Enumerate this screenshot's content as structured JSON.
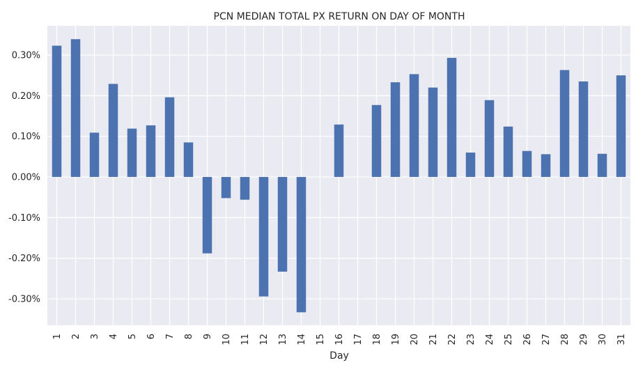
{
  "chart_data": {
    "type": "bar",
    "title": "PCN MEDIAN TOTAL PX RETURN ON DAY OF MONTH",
    "xlabel": "Day",
    "ylabel": "",
    "categories": [
      "1",
      "2",
      "3",
      "4",
      "5",
      "6",
      "7",
      "8",
      "9",
      "10",
      "11",
      "12",
      "13",
      "14",
      "15",
      "16",
      "17",
      "18",
      "19",
      "20",
      "21",
      "22",
      "23",
      "24",
      "25",
      "26",
      "27",
      "28",
      "29",
      "30",
      "31"
    ],
    "values": [
      0.323,
      0.339,
      0.109,
      0.229,
      0.119,
      0.127,
      0.196,
      0.085,
      -0.188,
      -0.052,
      -0.056,
      -0.294,
      -0.233,
      -0.333,
      0.0,
      0.129,
      0.0,
      0.177,
      0.233,
      0.253,
      0.22,
      0.293,
      0.06,
      0.189,
      0.124,
      0.064,
      0.056,
      0.263,
      0.235,
      0.057,
      0.25
    ],
    "value_unit": "%",
    "ylim": [
      -0.365,
      0.372
    ],
    "yticks": [
      -0.3,
      -0.2,
      -0.1,
      0.0,
      0.1,
      0.2,
      0.3
    ],
    "ytick_labels": [
      "-0.30%",
      "-0.20%",
      "-0.10%",
      "0.00%",
      "0.10%",
      "0.20%",
      "0.30%"
    ],
    "grid": true,
    "bar_color": "#4c72b0",
    "background_color": "#eaeaf2",
    "grid_color": "#ffffff"
  }
}
